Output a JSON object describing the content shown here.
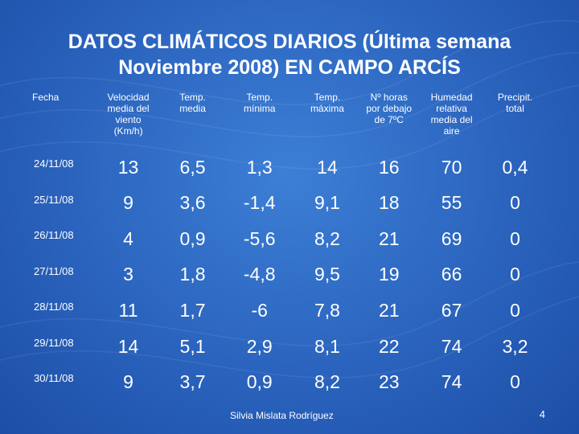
{
  "title": {
    "line1": "DATOS CLIMÁTICOS DIARIOS (Última semana",
    "line2": "Noviembre 2008) EN CAMPO ARCÍS"
  },
  "table": {
    "headers": [
      [
        "Fecha"
      ],
      [
        "Velocidad",
        "media del",
        "viento",
        "(Km/h)"
      ],
      [
        "Temp.",
        "media"
      ],
      [
        "Temp.",
        "mínima"
      ],
      [
        "Temp.",
        "máxima"
      ],
      [
        "Nº horas",
        "por debajo",
        "de 7ºC"
      ],
      [
        "Humedad",
        "relativa",
        "media del",
        "aire"
      ],
      [
        "Precipit.",
        "total"
      ]
    ],
    "rows": [
      [
        "24/11/08",
        "13",
        "6,5",
        "1,3",
        "14",
        "16",
        "70",
        "0,4"
      ],
      [
        "25/11/08",
        "9",
        "3,6",
        "-1,4",
        "9,1",
        "18",
        "55",
        "0"
      ],
      [
        "26/11/08",
        "4",
        "0,9",
        "-5,6",
        "8,2",
        "21",
        "69",
        "0"
      ],
      [
        "27/11/08",
        "3",
        "1,8",
        "-4,8",
        "9,5",
        "19",
        "66",
        "0"
      ],
      [
        "28/11/08",
        "11",
        "1,7",
        "-6",
        "7,8",
        "21",
        "67",
        "0"
      ],
      [
        "29/11/08",
        "14",
        "5,1",
        "2,9",
        "8,1",
        "22",
        "74",
        "3,2"
      ],
      [
        "30/11/08",
        "9",
        "3,7",
        "0,9",
        "8,2",
        "23",
        "74",
        "0"
      ]
    ]
  },
  "footer": {
    "author": "Silvia Mislata Rodríguez",
    "page_number": "4"
  }
}
